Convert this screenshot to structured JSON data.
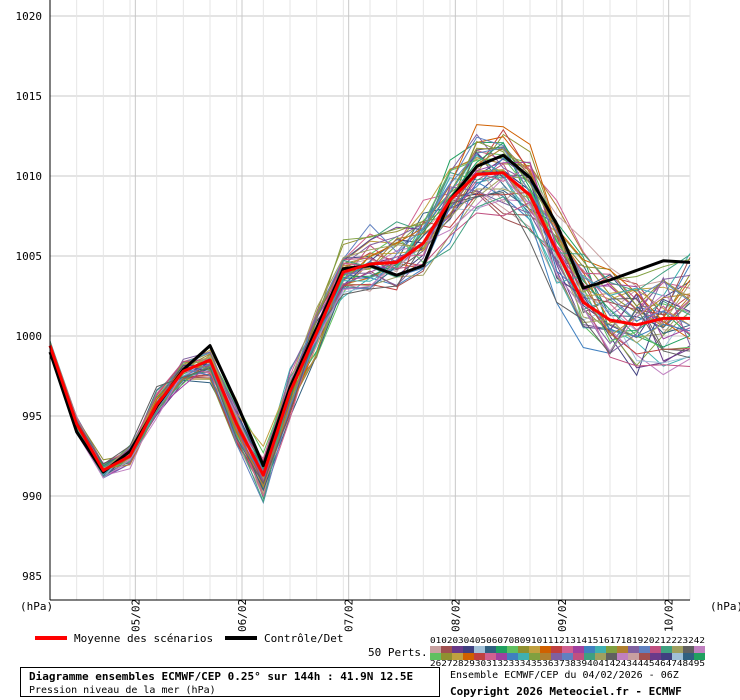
{
  "chart_data": {
    "type": "line",
    "title": "Diagramme ensembles ECMWF/CEP 0.25° sur 144h : 41.9N 12.5E",
    "subtitle": "Pression niveau de la mer (hPa)",
    "ylabel": "(hPa)",
    "ylim": [
      983.5,
      1021
    ],
    "y_ticks": [
      985,
      990,
      995,
      1000,
      1005,
      1010,
      1015,
      1020
    ],
    "x_tick_labels": [
      "05/02",
      "06/02",
      "07/02",
      "08/02",
      "09/02",
      "10/02"
    ],
    "grid": true,
    "series": [
      {
        "name": "Moyenne des scénarios",
        "color": "#ff0000",
        "values": [
          999.4,
          994.5,
          991.6,
          992.5,
          995.7,
          997.8,
          998.5,
          994.5,
          991.3,
          996.5,
          1000.2,
          1004.0,
          1004.5,
          1004.6,
          1005.8,
          1008.5,
          1010.1,
          1010.2,
          1008.8,
          1005.3,
          1002.1,
          1001.0,
          1000.7,
          1001.1,
          1001.1
        ]
      },
      {
        "name": "Contrôle/Det",
        "color": "#000000",
        "values": [
          999.0,
          994.0,
          991.5,
          992.8,
          995.6,
          997.9,
          999.4,
          995.8,
          991.9,
          996.8,
          1000.5,
          1004.2,
          1004.4,
          1003.8,
          1004.4,
          1008.5,
          1010.6,
          1011.3,
          1009.9,
          1007.0,
          1003.0,
          1003.5,
          1004.1,
          1004.7,
          1004.6
        ]
      }
    ]
  },
  "legend": {
    "mean_label": "Moyenne des scénarios",
    "control_label": "Contrôle/Det",
    "perts_label": "50 Perts.",
    "perts_row1": "0102030405060708091011121314151617181920212223242",
    "perts_row2": "2627282930313233343536373839404142434445464748495"
  },
  "info": {
    "title": "Diagramme ensembles ECMWF/CEP 0.25° sur 144h : 41.9N 12.5E",
    "subtitle": "Pression niveau de la mer (hPa)",
    "run": "Ensemble ECMWF/CEP du 04/02/2026 - 06Z",
    "copyright": "Copyright 2026 Meteociel.fr - ECMWF"
  },
  "colors": {
    "mean": "#ff0000",
    "control": "#000000",
    "grid": "#c8c8c8"
  }
}
